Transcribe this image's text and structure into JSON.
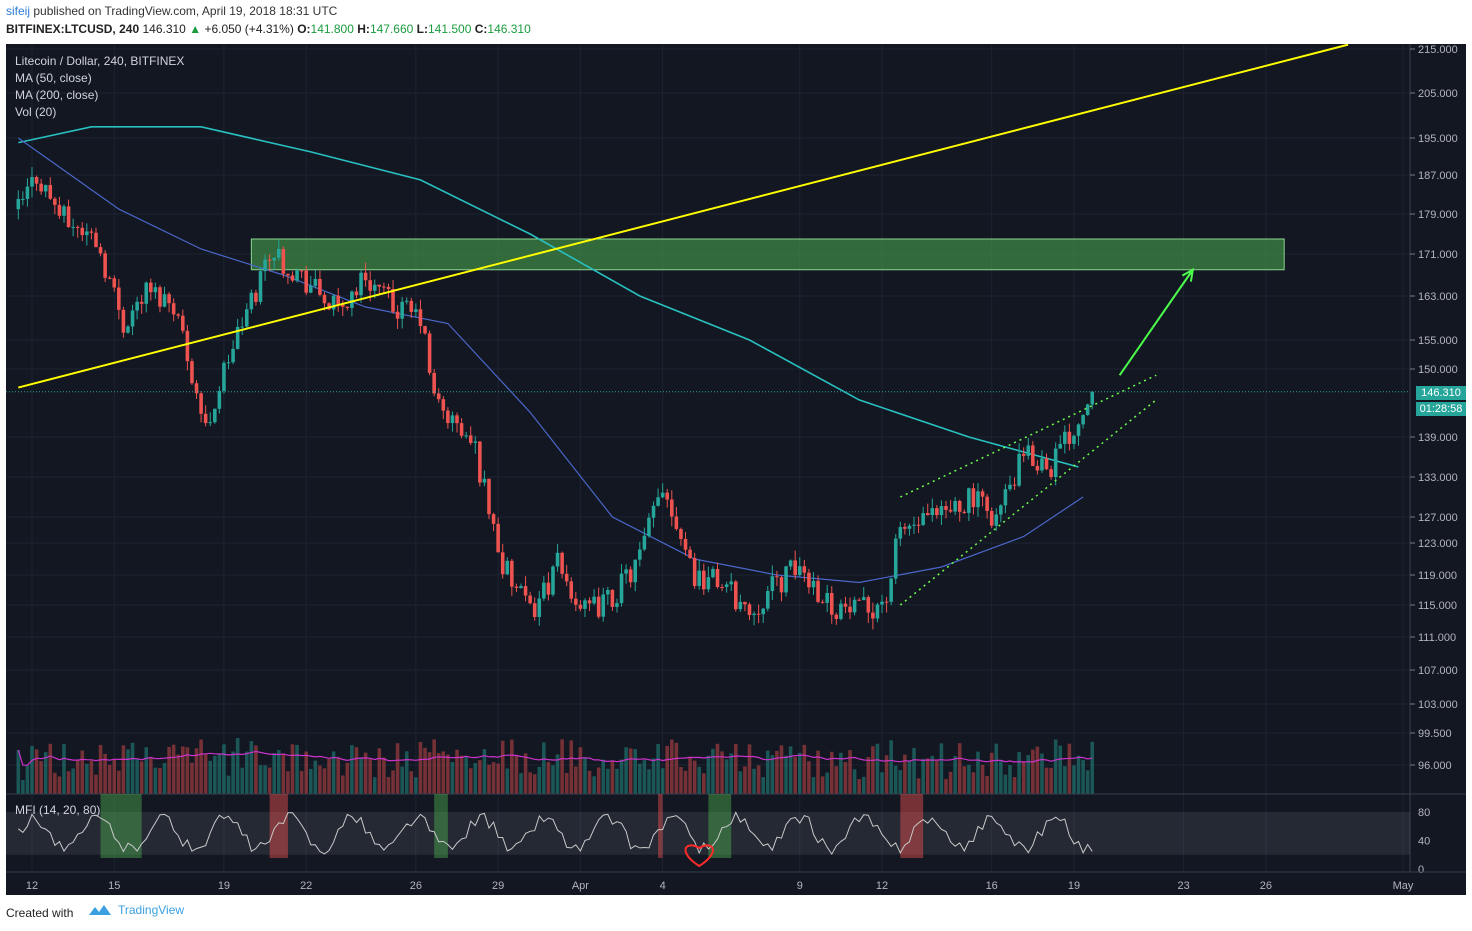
{
  "header": {
    "user": "sifeij",
    "published_text": " published on TradingView.com, April 19, 2018 18:31 UTC",
    "symbol": "BITFINEX:LTCUSD, 240",
    "price": "146.310",
    "change": "+6.050 (+4.31%)",
    "o_label": "O:",
    "o_value": "141.800",
    "h_label": "H:",
    "h_value": "147.660",
    "l_label": "L:",
    "l_value": "141.500",
    "c_label": "C:",
    "c_value": "146.310"
  },
  "legend": {
    "title": "Litecoin / Dollar, 240, BITFINEX",
    "ma50": "MA (50, close)",
    "ma200": "MA (200, close)",
    "vol": "Vol (20)"
  },
  "mfi": {
    "label": "MFI (14, 20, 80)",
    "levels": [
      "80",
      "40",
      "0"
    ]
  },
  "price_tags": {
    "last_price": "146.310",
    "countdown": "01:28:58"
  },
  "footer": {
    "created_with": "Created with",
    "brand": "TradingView"
  },
  "colors": {
    "background": "#131722",
    "up": "#26a69a",
    "down": "#ef5350",
    "trendline": "#ffff00",
    "zone": "#4caf50",
    "arrow": "#4cff4c",
    "ma50": "#4a67c9",
    "ma200": "#28c0c0",
    "vol_ma": "#cc33cc"
  },
  "chart_data": {
    "type": "candlestick",
    "symbol": "LTCUSD",
    "exchange": "BITFINEX",
    "timeframe": "240",
    "x_ticks": [
      "12",
      "15",
      "19",
      "22",
      "26",
      "29",
      "Apr",
      "4",
      "9",
      "12",
      "16",
      "19",
      "23",
      "26",
      "May"
    ],
    "y_ticks": [
      "215.000",
      "205.000",
      "195.000",
      "187.000",
      "179.000",
      "171.000",
      "163.000",
      "155.000",
      "150.000",
      "139.000",
      "133.000",
      "127.000",
      "123.000",
      "119.000",
      "115.000",
      "111.000",
      "107.000",
      "103.000",
      "99.500",
      "96.000"
    ],
    "last_price": 146.31,
    "close_path": [
      {
        "date": "2018-03-11 12:00",
        "close": 180
      },
      {
        "date": "2018-03-12 04:00",
        "close": 187
      },
      {
        "date": "2018-03-13 04:00",
        "close": 178
      },
      {
        "date": "2018-03-14 08:00",
        "close": 174
      },
      {
        "date": "2018-03-15 08:00",
        "close": 158
      },
      {
        "date": "2018-03-16 04:00",
        "close": 164
      },
      {
        "date": "2018-03-17 04:00",
        "close": 162
      },
      {
        "date": "2018-03-18 08:00",
        "close": 140
      },
      {
        "date": "2018-03-19 04:00",
        "close": 152
      },
      {
        "date": "2018-03-20 04:00",
        "close": 164
      },
      {
        "date": "2018-03-20 16:00",
        "close": 172
      },
      {
        "date": "2018-03-22 04:00",
        "close": 165
      },
      {
        "date": "2018-03-23 04:00",
        "close": 160
      },
      {
        "date": "2018-03-24 04:00",
        "close": 167
      },
      {
        "date": "2018-03-25 04:00",
        "close": 161
      },
      {
        "date": "2018-03-26 04:00",
        "close": 159
      },
      {
        "date": "2018-03-26 16:00",
        "close": 145
      },
      {
        "date": "2018-03-28 04:00",
        "close": 137
      },
      {
        "date": "2018-03-29 04:00",
        "close": 120
      },
      {
        "date": "2018-03-30 04:00",
        "close": 114
      },
      {
        "date": "2018-03-31 04:00",
        "close": 120
      },
      {
        "date": "2018-04-01 04:00",
        "close": 114
      },
      {
        "date": "2018-04-02 04:00",
        "close": 116
      },
      {
        "date": "2018-04-03 04:00",
        "close": 121
      },
      {
        "date": "2018-04-04 00:00",
        "close": 132
      },
      {
        "date": "2018-04-05 04:00",
        "close": 119
      },
      {
        "date": "2018-04-06 04:00",
        "close": 118
      },
      {
        "date": "2018-04-07 04:00",
        "close": 114
      },
      {
        "date": "2018-04-08 04:00",
        "close": 118
      },
      {
        "date": "2018-04-09 00:00",
        "close": 120
      },
      {
        "date": "2018-04-10 04:00",
        "close": 115
      },
      {
        "date": "2018-04-11 04:00",
        "close": 114
      },
      {
        "date": "2018-04-12 04:00",
        "close": 116
      },
      {
        "date": "2018-04-12 16:00",
        "close": 125
      },
      {
        "date": "2018-04-14 04:00",
        "close": 127
      },
      {
        "date": "2018-04-15 04:00",
        "close": 130
      },
      {
        "date": "2018-04-16 04:00",
        "close": 127
      },
      {
        "date": "2018-04-17 04:00",
        "close": 136
      },
      {
        "date": "2018-04-18 04:00",
        "close": 135
      },
      {
        "date": "2018-04-19 04:00",
        "close": 141.8
      },
      {
        "date": "2018-04-19 16:00",
        "close": 146.31
      }
    ],
    "ma200_path": [
      {
        "date": "2018-03-11 12:00",
        "value": 194
      },
      {
        "date": "2018-03-14 04:00",
        "value": 197.5
      },
      {
        "date": "2018-03-18 04:00",
        "value": 197.5
      },
      {
        "date": "2018-03-22 04:00",
        "value": 192
      },
      {
        "date": "2018-03-26 04:00",
        "value": 186
      },
      {
        "date": "2018-03-30 04:00",
        "value": 175
      },
      {
        "date": "2018-04-03 04:00",
        "value": 163
      },
      {
        "date": "2018-04-07 04:00",
        "value": 155
      },
      {
        "date": "2018-04-11 04:00",
        "value": 145
      },
      {
        "date": "2018-04-15 04:00",
        "value": 139
      },
      {
        "date": "2018-04-19 04:00",
        "value": 134.5
      }
    ],
    "ma50_path": [
      {
        "date": "2018-03-11 12:00",
        "value": 195
      },
      {
        "date": "2018-03-15 04:00",
        "value": 180
      },
      {
        "date": "2018-03-18 04:00",
        "value": 172
      },
      {
        "date": "2018-03-21 04:00",
        "value": 167
      },
      {
        "date": "2018-03-24 04:00",
        "value": 161
      },
      {
        "date": "2018-03-27 04:00",
        "value": 158
      },
      {
        "date": "2018-03-30 04:00",
        "value": 143
      },
      {
        "date": "2018-04-02 04:00",
        "value": 127
      },
      {
        "date": "2018-04-05 04:00",
        "value": 121
      },
      {
        "date": "2018-04-08 04:00",
        "value": 119
      },
      {
        "date": "2018-04-11 04:00",
        "value": 118
      },
      {
        "date": "2018-04-14 04:00",
        "value": 120
      },
      {
        "date": "2018-04-17 04:00",
        "value": 124
      },
      {
        "date": "2018-04-19 08:00",
        "value": 130
      }
    ],
    "drawings": {
      "resistance_zone": {
        "from": "2018-03-20 00:00",
        "to": "2018-04-26 16:00",
        "low": 168,
        "high": 174
      },
      "trendline": {
        "p1": {
          "date": "2018-03-11 12:00",
          "price": 147
        },
        "p2": {
          "date": "2018-04-29 00:00",
          "price": 216
        }
      },
      "channel_upper": {
        "p1": {
          "date": "2018-04-12 16:00",
          "price": 130
        },
        "p2": {
          "date": "2018-04-22 00:00",
          "price": 149
        }
      },
      "channel_lower": {
        "p1": {
          "date": "2018-04-12 16:00",
          "price": 115
        },
        "p2": {
          "date": "2018-04-22 00:00",
          "price": 145
        }
      },
      "arrow": {
        "from": {
          "date": "2018-04-20 16:00",
          "price": 149
        },
        "to": {
          "date": "2018-04-23 08:00",
          "price": 168
        }
      }
    },
    "mfi_oversold_highlights": [
      [
        "2018-03-14 12:00",
        "2018-03-16 00:00"
      ],
      [
        "2018-03-26 16:00",
        "2018-03-27 04:00"
      ],
      [
        "2018-04-05 16:00",
        "2018-04-06 12:00"
      ]
    ],
    "mfi_overbought_highlights": [
      [
        "2018-03-20 16:00",
        "2018-03-21 08:00"
      ],
      [
        "2018-04-03 20:00",
        "2018-04-04 00:00"
      ],
      [
        "2018-04-12 16:00",
        "2018-04-13 12:00"
      ]
    ]
  }
}
